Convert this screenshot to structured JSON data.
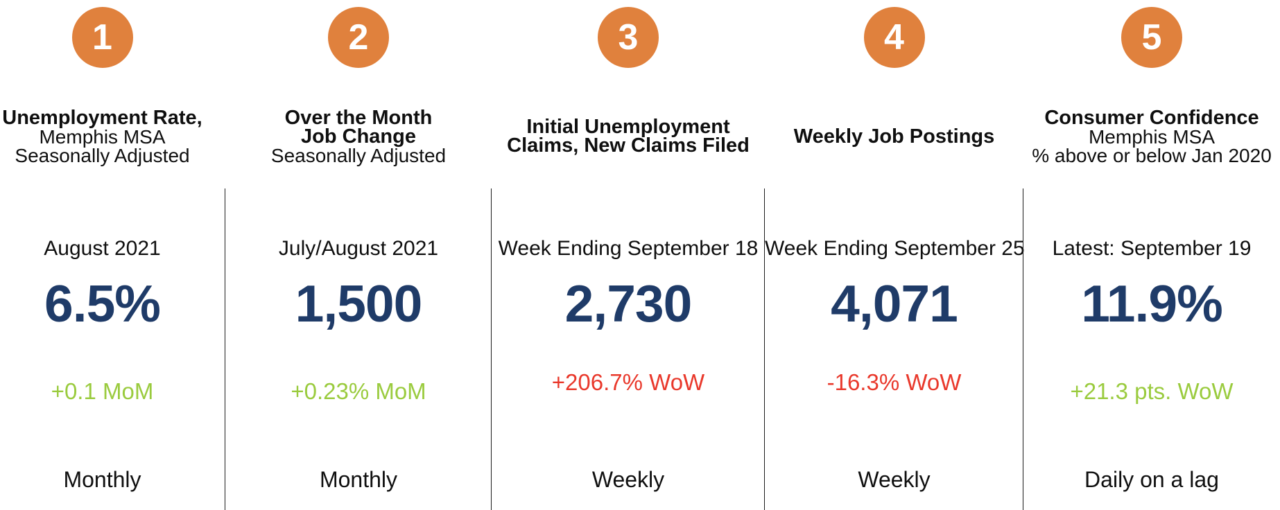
{
  "colors": {
    "badge_orange": "#E0813D",
    "value_navy": "#1F3B68",
    "positive_green": "#9ACB3E",
    "negative_red": "#E9382B",
    "text_black": "#0F0F0F"
  },
  "columns": [
    {
      "number": "1",
      "title_bold_1": "Unemployment Rate,",
      "title_bold_2": "",
      "subtitle_1": "Memphis MSA",
      "subtitle_2": "Seasonally Adjusted",
      "period": "August 2021",
      "value": "6.5%",
      "change": "+0.1 MoM",
      "change_direction": "positive",
      "frequency": "Monthly"
    },
    {
      "number": "2",
      "title_bold_1": "Over the Month",
      "title_bold_2": "Job Change",
      "subtitle_1": "Seasonally Adjusted",
      "subtitle_2": "",
      "period": "July/August 2021",
      "value": "1,500",
      "change": "+0.23% MoM",
      "change_direction": "positive",
      "frequency": "Monthly"
    },
    {
      "number": "3",
      "title_bold_1": "Initial Unemployment",
      "title_bold_2": "Claims, New Claims Filed",
      "subtitle_1": "",
      "subtitle_2": "",
      "period": "Week Ending September 18",
      "value": "2,730",
      "change": "+206.7% WoW",
      "change_direction": "negative",
      "frequency": "Weekly"
    },
    {
      "number": "4",
      "title_bold_1": "Weekly Job Postings",
      "title_bold_2": "",
      "subtitle_1": "",
      "subtitle_2": "",
      "period": "Week Ending September 25",
      "value": "4,071",
      "change": "-16.3% WoW",
      "change_direction": "negative",
      "frequency": "Weekly"
    },
    {
      "number": "5",
      "title_bold_1": "Consumer Confidence",
      "title_bold_2": "",
      "subtitle_1": "Memphis MSA",
      "subtitle_2": "% above or below Jan 2020",
      "period": "Latest: September 19",
      "value": "11.9%",
      "change": "+21.3 pts. WoW",
      "change_direction": "positive",
      "frequency": "Daily on a lag"
    }
  ],
  "chart_data": {
    "type": "table",
    "columns": [
      "number",
      "indicator",
      "detail",
      "period",
      "value",
      "change",
      "frequency"
    ],
    "rows": [
      [
        "1",
        "Unemployment Rate,",
        "Memphis MSA / Seasonally Adjusted",
        "August 2021",
        "6.5%",
        "+0.1 MoM",
        "Monthly"
      ],
      [
        "2",
        "Over the Month Job Change",
        "Seasonally Adjusted",
        "July/August 2021",
        "1,500",
        "+0.23% MoM",
        "Monthly"
      ],
      [
        "3",
        "Initial Unemployment Claims, New Claims Filed",
        "",
        "Week Ending September 18",
        "2,730",
        "+206.7% WoW",
        "Weekly"
      ],
      [
        "4",
        "Weekly Job Postings",
        "",
        "Week Ending September 25",
        "4,071",
        "-16.3% WoW",
        "Weekly"
      ],
      [
        "5",
        "Consumer Confidence",
        "Memphis MSA / % above or below Jan 2020",
        "Latest: September 19",
        "11.9%",
        "+21.3 pts. WoW",
        "Daily on a lag"
      ]
    ],
    "layout": {
      "orientation": "5 metric cards in a row",
      "grid": false,
      "legend": "none"
    }
  }
}
